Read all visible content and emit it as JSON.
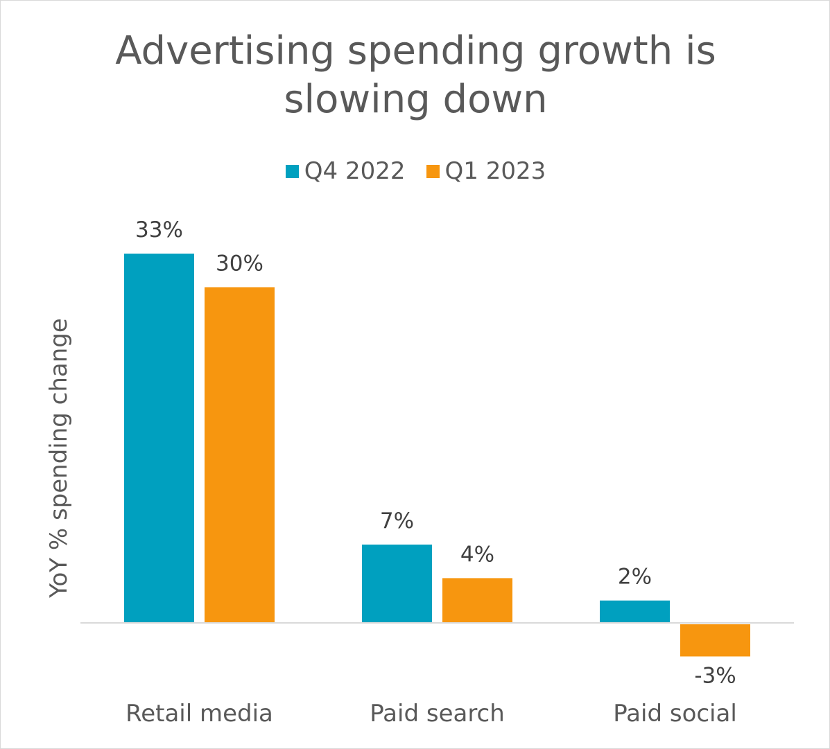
{
  "chart_data": {
    "type": "bar",
    "title": "Advertising spending growth is slowing down",
    "title_lines": [
      "Advertising spending growth is",
      "slowing down"
    ],
    "xlabel": "",
    "ylabel": "YoY % spending change",
    "categories": [
      "Retail media",
      "Paid search",
      "Paid social"
    ],
    "series": [
      {
        "name": "Q4 2022",
        "color": "#00a0bf",
        "values": [
          33,
          7,
          2
        ],
        "labels": [
          "33%",
          "7%",
          "2%"
        ]
      },
      {
        "name": "Q1 2023",
        "color": "#f7960f",
        "values": [
          30,
          4,
          -3
        ],
        "labels": [
          "30%",
          "4%",
          "-3%"
        ]
      }
    ],
    "ylim": [
      -5,
      38
    ],
    "grid": false,
    "legend_position": "top"
  }
}
